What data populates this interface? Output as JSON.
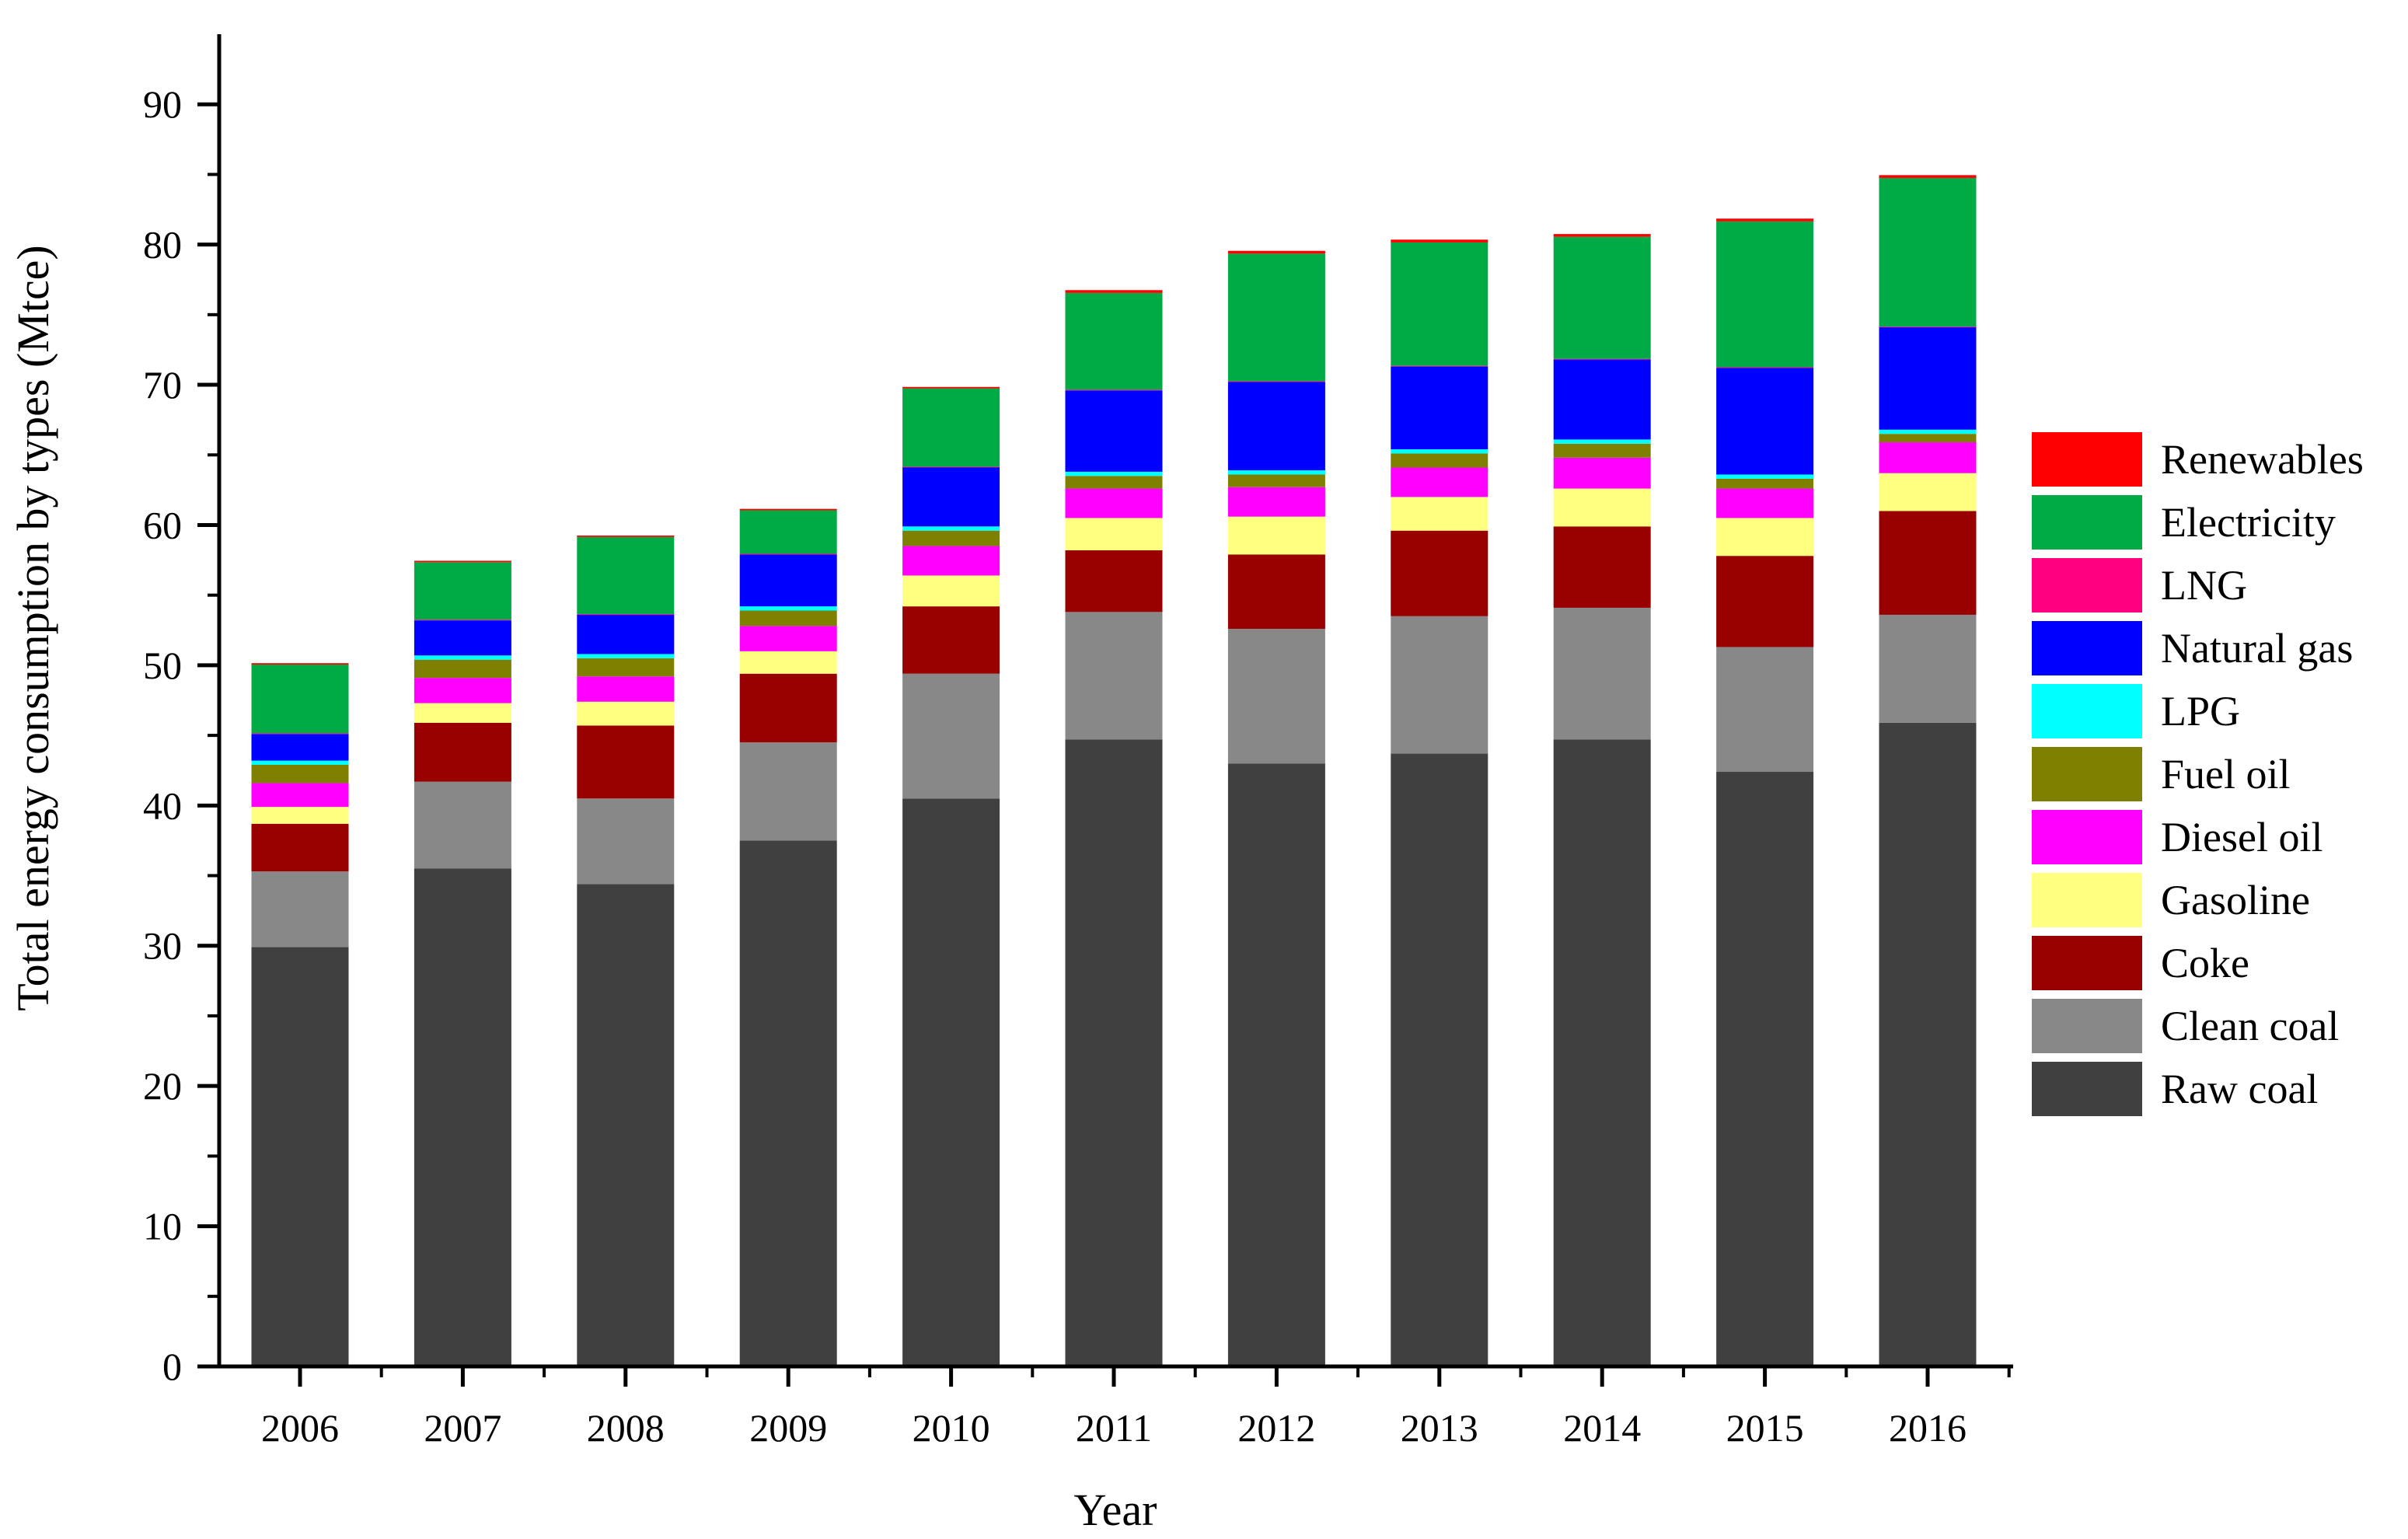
{
  "chart_data": {
    "type": "bar",
    "stacked": true,
    "title": "",
    "xlabel": "Year",
    "ylabel": "Total energy consumption by types (Mtce)",
    "ylim": [
      0,
      95
    ],
    "yticks": [
      0,
      10,
      20,
      30,
      40,
      50,
      60,
      70,
      80,
      90
    ],
    "grid": false,
    "legend_position": "right",
    "categories": [
      "2006",
      "2007",
      "2008",
      "2009",
      "2010",
      "2011",
      "2012",
      "2013",
      "2014",
      "2015",
      "2016"
    ],
    "series": [
      {
        "name": "Raw coal",
        "color": "#404040",
        "values": [
          29.9,
          35.5,
          34.4,
          37.5,
          40.5,
          44.7,
          43.0,
          43.7,
          44.7,
          42.4,
          45.9
        ]
      },
      {
        "name": "Clean coal",
        "color": "#888888",
        "values": [
          5.4,
          6.2,
          6.1,
          7.0,
          8.9,
          9.1,
          9.6,
          9.8,
          9.4,
          8.9,
          7.7
        ]
      },
      {
        "name": "Coke",
        "color": "#990000",
        "values": [
          3.4,
          4.2,
          5.2,
          4.9,
          4.8,
          4.4,
          5.3,
          6.1,
          5.8,
          6.5,
          7.4
        ]
      },
      {
        "name": "Gasoline",
        "color": "#ffff80",
        "values": [
          1.2,
          1.4,
          1.7,
          1.6,
          2.2,
          2.3,
          2.7,
          2.4,
          2.7,
          2.7,
          2.7
        ]
      },
      {
        "name": "Diesel oil",
        "color": "#ff00ff",
        "values": [
          1.7,
          1.8,
          1.8,
          1.8,
          2.1,
          2.1,
          2.1,
          2.1,
          2.2,
          2.1,
          2.2
        ]
      },
      {
        "name": "Fuel oil",
        "color": "#808000",
        "values": [
          1.3,
          1.3,
          1.3,
          1.1,
          1.1,
          0.9,
          0.9,
          1.0,
          1.0,
          0.7,
          0.6
        ]
      },
      {
        "name": "LPG",
        "color": "#00ffff",
        "values": [
          0.3,
          0.3,
          0.3,
          0.3,
          0.3,
          0.3,
          0.3,
          0.3,
          0.3,
          0.3,
          0.3
        ]
      },
      {
        "name": "Natural gas",
        "color": "#0000ff",
        "values": [
          1.9,
          2.5,
          2.8,
          3.7,
          4.2,
          5.8,
          6.3,
          5.9,
          5.7,
          7.6,
          7.3
        ]
      },
      {
        "name": "LNG",
        "color": "#ff0080",
        "values": [
          0.05,
          0.05,
          0.05,
          0.05,
          0.05,
          0.05,
          0.05,
          0.05,
          0.05,
          0.05,
          0.05
        ]
      },
      {
        "name": "Electricity",
        "color": "#00aa44",
        "values": [
          4.9,
          4.1,
          5.5,
          3.1,
          5.6,
          6.9,
          9.1,
          8.8,
          8.7,
          10.4,
          10.6
        ]
      },
      {
        "name": "Renewables",
        "color": "#ff0000",
        "values": [
          0.1,
          0.1,
          0.1,
          0.1,
          0.1,
          0.2,
          0.2,
          0.2,
          0.2,
          0.2,
          0.2
        ]
      }
    ]
  }
}
